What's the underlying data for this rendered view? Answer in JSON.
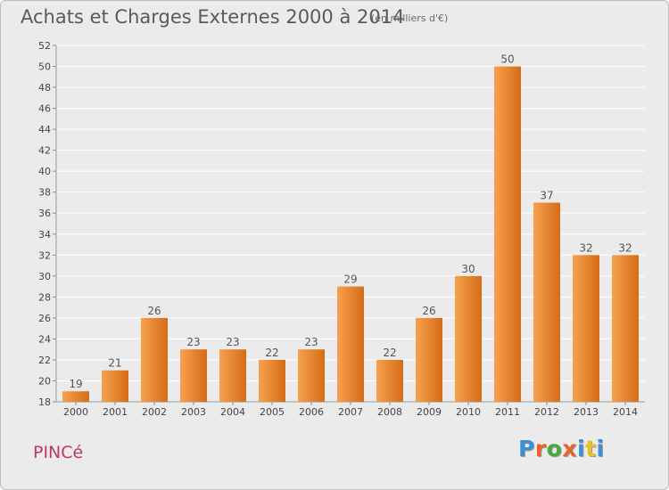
{
  "title": "Achats et Charges Externes 2000 à 2014",
  "subtitle": "(en milliers d'€)",
  "commune": "PINCé",
  "logo": {
    "text": "Proxiti",
    "letter_colors": [
      "#3c8fd6",
      "#e8642a",
      "#4aa83c",
      "#e8642a",
      "#3c8fd6",
      "#e8c21e",
      "#3c8fd6"
    ]
  },
  "colors": {
    "background": "#ebebeb",
    "bar_light": "#f7a14e",
    "bar_dark": "#d46c17",
    "grid": "#ffffff",
    "axis_text": "#444444",
    "commune": "#c0395f"
  },
  "chart_data": {
    "type": "bar",
    "categories": [
      "2000",
      "2001",
      "2002",
      "2003",
      "2004",
      "2005",
      "2006",
      "2007",
      "2008",
      "2009",
      "2010",
      "2011",
      "2012",
      "2013",
      "2014"
    ],
    "values": [
      19,
      21,
      26,
      23,
      23,
      22,
      23,
      29,
      22,
      26,
      30,
      50,
      37,
      32,
      32
    ],
    "data_labels": [
      "19",
      "21",
      "26",
      "23",
      "23",
      "22",
      "23",
      "29",
      "22",
      "26",
      "30",
      "50",
      "37",
      "32",
      "32"
    ],
    "ylim": [
      18,
      52
    ],
    "yticks": [
      18,
      20,
      22,
      24,
      26,
      28,
      30,
      32,
      34,
      36,
      38,
      40,
      42,
      44,
      46,
      48,
      50,
      52
    ],
    "grid": true,
    "xlabel": "",
    "ylabel": ""
  }
}
